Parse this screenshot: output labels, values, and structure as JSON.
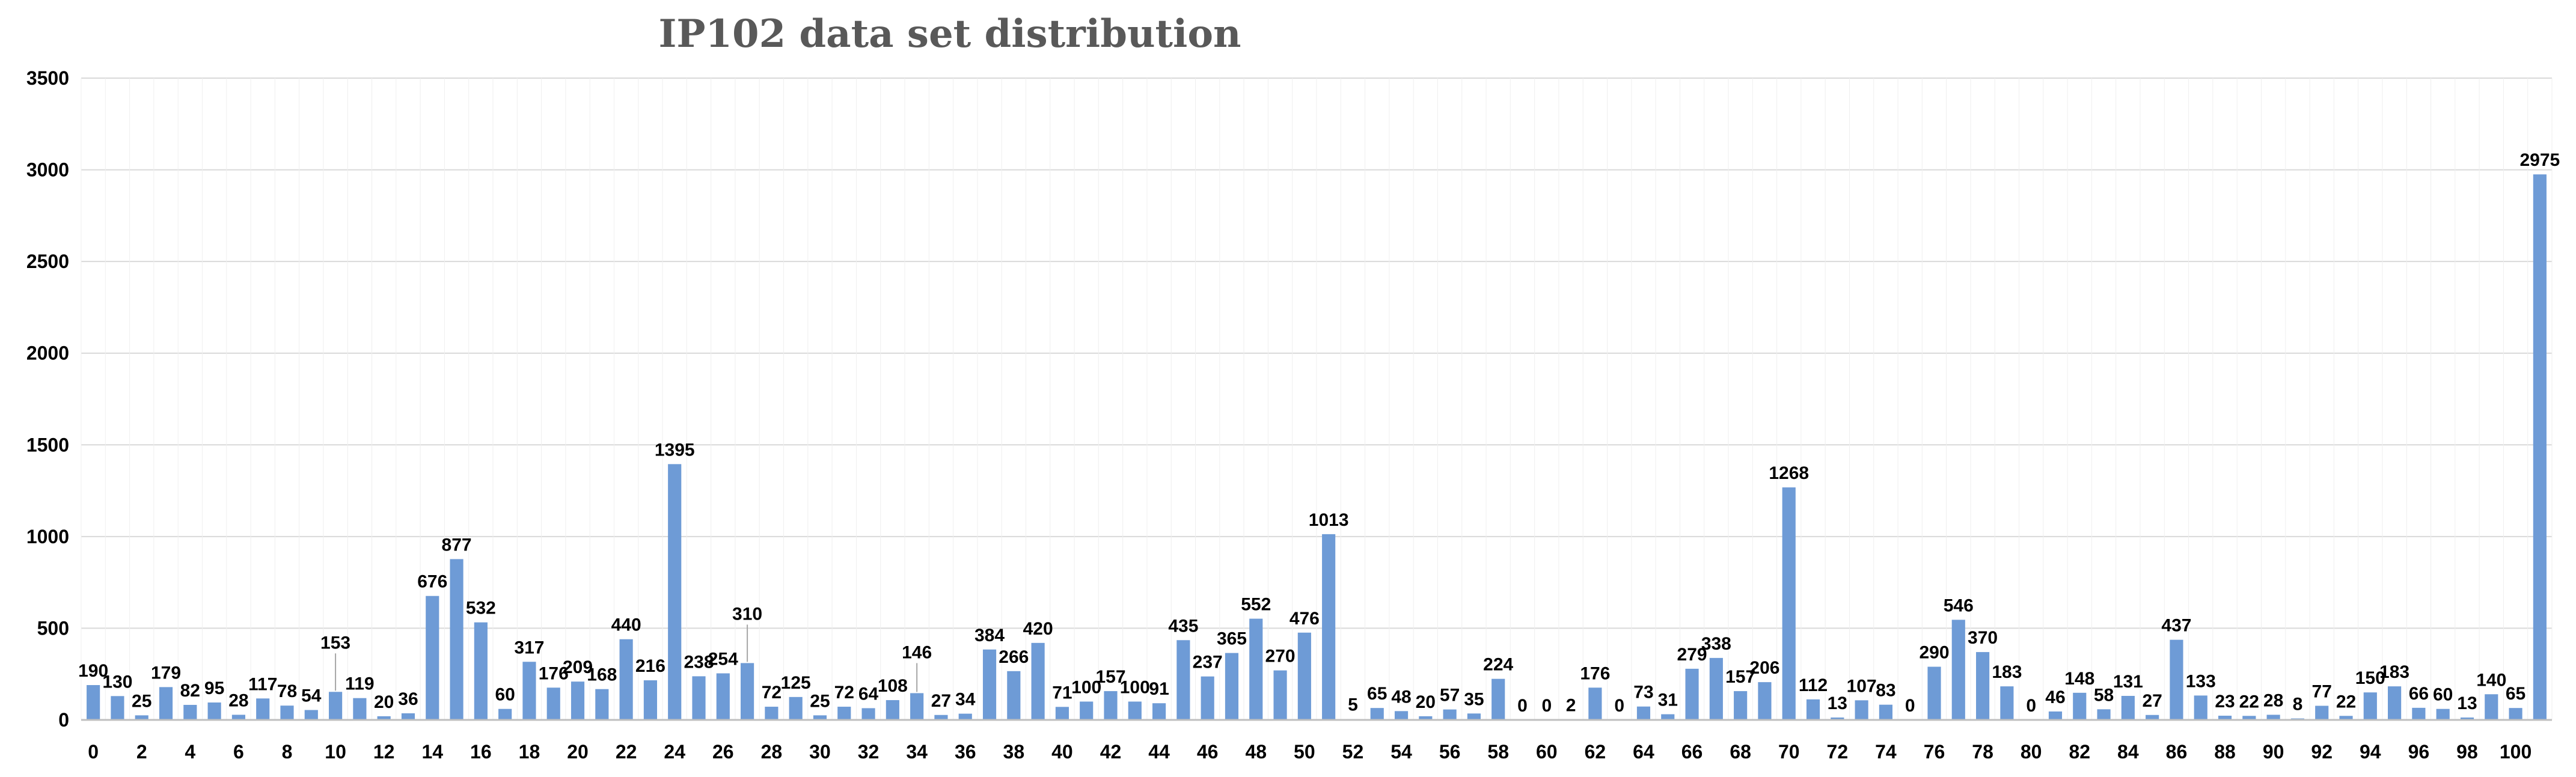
{
  "chart_data": {
    "type": "bar",
    "title": "IP102 data set distribution",
    "xlabel": "",
    "ylabel": "",
    "ylim": [
      0,
      3500
    ],
    "yticks": [
      0,
      500,
      1000,
      1500,
      2000,
      2500,
      3000,
      3500
    ],
    "grid": true,
    "legend": "none",
    "colors": {
      "bar": "#6e9bd6",
      "title": "#595959"
    },
    "categories": [
      "0",
      "1",
      "2",
      "3",
      "4",
      "5",
      "6",
      "7",
      "8",
      "9",
      "10",
      "11",
      "12",
      "13",
      "14",
      "15",
      "16",
      "17",
      "18",
      "19",
      "20",
      "21",
      "22",
      "23",
      "24",
      "25",
      "26",
      "27",
      "28",
      "29",
      "30",
      "31",
      "32",
      "33",
      "34",
      "35",
      "36",
      "37",
      "38",
      "39",
      "40",
      "41",
      "42",
      "43",
      "44",
      "45",
      "46",
      "47",
      "48",
      "49",
      "50",
      "51",
      "52",
      "53",
      "54",
      "55",
      "56",
      "57",
      "58",
      "59",
      "60",
      "61",
      "62",
      "63",
      "64",
      "65",
      "66",
      "67",
      "68",
      "69",
      "70",
      "71",
      "72",
      "73",
      "74",
      "75",
      "76",
      "77",
      "78",
      "79",
      "80",
      "81",
      "82",
      "83",
      "84",
      "85",
      "86",
      "87",
      "88",
      "89",
      "90",
      "91",
      "92",
      "93",
      "94",
      "95",
      "96",
      "97",
      "98",
      "99",
      "100",
      "101"
    ],
    "xtick_labels": [
      "0",
      "2",
      "4",
      "6",
      "8",
      "10",
      "12",
      "14",
      "16",
      "18",
      "20",
      "22",
      "24",
      "26",
      "28",
      "30",
      "32",
      "34",
      "36",
      "38",
      "40",
      "42",
      "44",
      "46",
      "48",
      "50",
      "52",
      "54",
      "56",
      "58",
      "60",
      "62",
      "64",
      "66",
      "68",
      "70",
      "72",
      "74",
      "76",
      "78",
      "80",
      "82",
      "84",
      "86",
      "88",
      "90",
      "92",
      "94",
      "96",
      "98",
      "100"
    ],
    "values": [
      190,
      130,
      25,
      179,
      82,
      95,
      28,
      117,
      78,
      54,
      153,
      119,
      20,
      36,
      676,
      877,
      532,
      60,
      317,
      176,
      209,
      168,
      440,
      216,
      1395,
      238,
      254,
      310,
      72,
      125,
      25,
      72,
      64,
      108,
      146,
      27,
      34,
      384,
      266,
      420,
      71,
      100,
      157,
      100,
      91,
      435,
      237,
      365,
      552,
      270,
      476,
      1013,
      5,
      65,
      48,
      20,
      57,
      35,
      224,
      0,
      0,
      2,
      176,
      0,
      73,
      31,
      279,
      338,
      157,
      206,
      1268,
      112,
      13,
      107,
      83,
      0,
      290,
      546,
      370,
      183,
      0,
      46,
      148,
      58,
      131,
      27,
      437,
      133,
      23,
      22,
      28,
      8,
      77,
      22,
      150,
      183,
      66,
      60,
      13,
      140,
      65,
      2975
    ]
  }
}
